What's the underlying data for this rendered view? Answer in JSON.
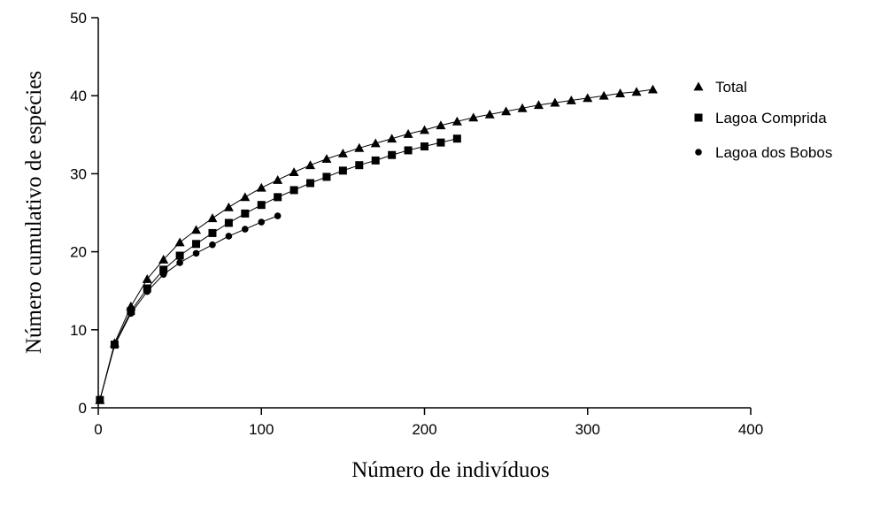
{
  "chart_data": {
    "type": "line",
    "title": "",
    "xlabel": "Número de indivíduos",
    "ylabel": "Número cumulativo de espécies",
    "xlim": [
      0,
      400
    ],
    "ylim": [
      0,
      50
    ],
    "x_ticks": [
      0,
      100,
      200,
      300,
      400
    ],
    "y_ticks": [
      0,
      10,
      20,
      30,
      40,
      50
    ],
    "grid": false,
    "legend_position": "right",
    "series": [
      {
        "name": "Total",
        "marker": "triangle",
        "x": [
          1,
          10,
          20,
          30,
          40,
          50,
          60,
          70,
          80,
          90,
          100,
          110,
          120,
          130,
          140,
          150,
          160,
          170,
          180,
          190,
          200,
          210,
          220,
          230,
          240,
          250,
          260,
          270,
          280,
          290,
          300,
          310,
          320,
          330,
          340
        ],
        "y": [
          1,
          8.3,
          13,
          16.5,
          19,
          21.2,
          22.8,
          24.3,
          25.7,
          27,
          28.2,
          29.2,
          30.2,
          31.1,
          31.9,
          32.6,
          33.3,
          33.9,
          34.5,
          35.1,
          35.6,
          36.2,
          36.7,
          37.2,
          37.6,
          38,
          38.4,
          38.8,
          39.1,
          39.4,
          39.7,
          40,
          40.3,
          40.5,
          40.8
        ]
      },
      {
        "name": "Lagoa Comprida",
        "marker": "square",
        "x": [
          1,
          10,
          20,
          30,
          40,
          50,
          60,
          70,
          80,
          90,
          100,
          110,
          120,
          130,
          140,
          150,
          160,
          170,
          180,
          190,
          200,
          210,
          220
        ],
        "y": [
          1,
          8.1,
          12.4,
          15.3,
          17.7,
          19.5,
          21,
          22.4,
          23.7,
          24.9,
          26,
          27,
          27.9,
          28.8,
          29.6,
          30.4,
          31.1,
          31.7,
          32.4,
          33,
          33.5,
          34,
          34.5
        ]
      },
      {
        "name": "Lagoa dos Bobos",
        "marker": "circle",
        "x": [
          1,
          10,
          20,
          30,
          40,
          50,
          60,
          70,
          80,
          90,
          100,
          110
        ],
        "y": [
          1,
          8,
          12.1,
          14.9,
          17.1,
          18.6,
          19.8,
          20.9,
          22,
          22.9,
          23.8,
          24.6
        ]
      }
    ]
  }
}
